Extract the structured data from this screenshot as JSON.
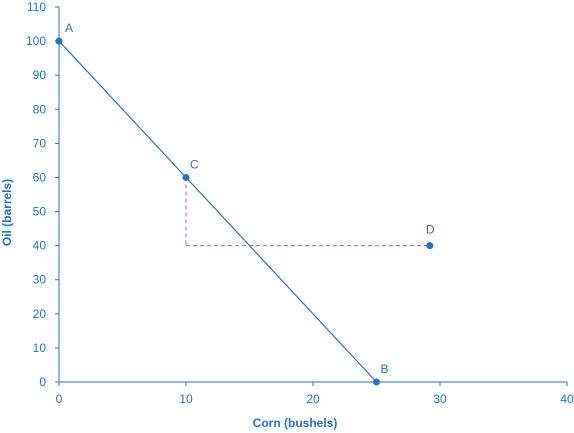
{
  "chart_data": {
    "type": "line",
    "xlabel": "Corn (bushels)",
    "ylabel": "Oil (barrels)",
    "xlim": [
      0,
      40
    ],
    "ylim": [
      0,
      110
    ],
    "x_ticks": [
      0,
      10,
      20,
      30,
      40
    ],
    "y_ticks": [
      0,
      10,
      20,
      30,
      40,
      50,
      60,
      70,
      80,
      90,
      100,
      110
    ],
    "grid": false,
    "line": {
      "from": "A",
      "to": "B",
      "color": "#2a72c2"
    },
    "points": [
      {
        "label": "A",
        "x": 0,
        "y": 100
      },
      {
        "label": "B",
        "x": 25,
        "y": 0
      },
      {
        "label": "C",
        "x": 10,
        "y": 60
      },
      {
        "label": "D",
        "x": 29.2,
        "y": 40
      }
    ],
    "guide_lines": [
      {
        "from": [
          10,
          60
        ],
        "to": [
          10,
          40
        ],
        "style": "dashed",
        "color": "#d64fa8"
      },
      {
        "from": [
          10,
          40
        ],
        "to": [
          29.2,
          40
        ],
        "style": "dashed",
        "color": "#d64fa8"
      }
    ],
    "colors": {
      "axis": "#2a72c2",
      "point": "#2a72c2",
      "guide": "#d64fa8"
    }
  }
}
